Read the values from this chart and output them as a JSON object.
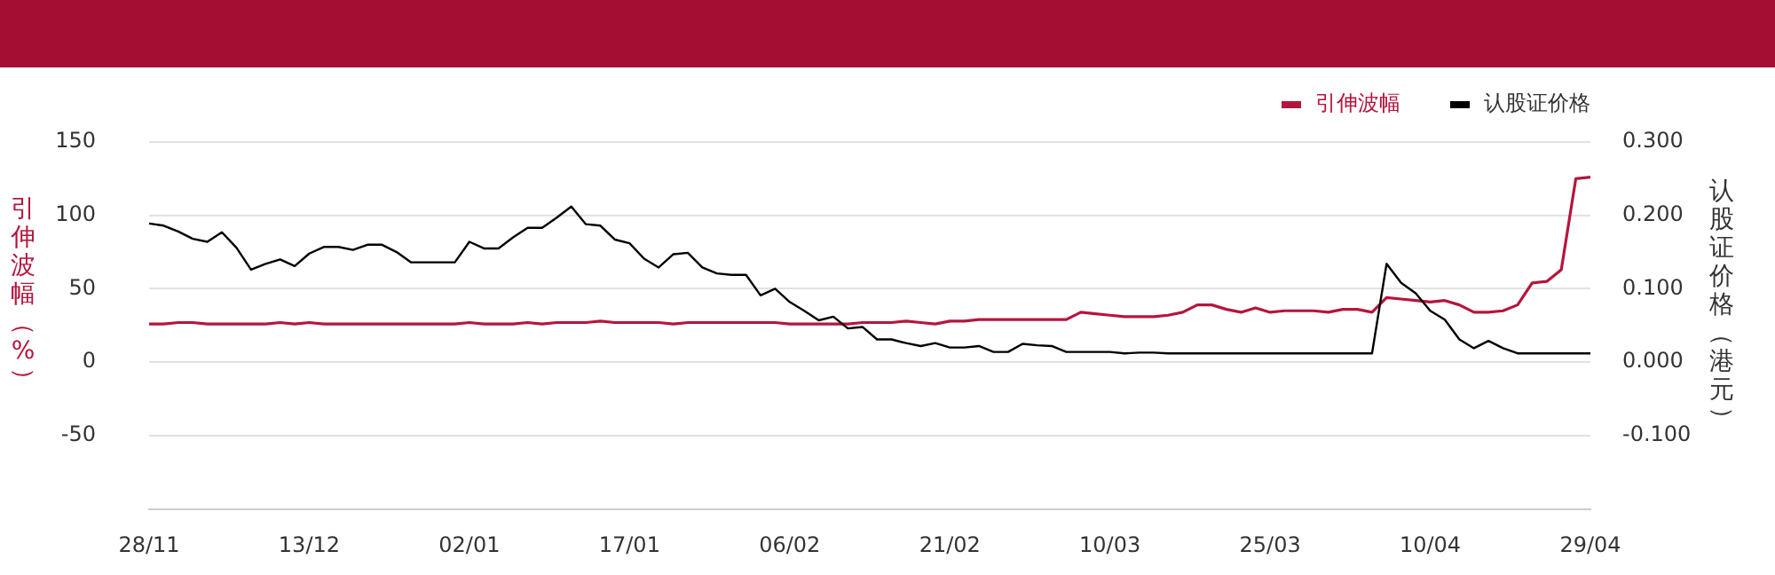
{
  "chart_data": {
    "type": "line",
    "categories": [
      "28/11",
      null,
      null,
      null,
      null,
      null,
      null,
      null,
      null,
      null,
      null,
      "13/12",
      null,
      null,
      null,
      null,
      null,
      null,
      null,
      null,
      null,
      null,
      "02/01",
      null,
      null,
      null,
      null,
      null,
      null,
      null,
      null,
      null,
      null,
      "17/01",
      null,
      null,
      null,
      null,
      null,
      null,
      null,
      null,
      null,
      null,
      "06/02",
      null,
      null,
      null,
      null,
      null,
      null,
      null,
      null,
      null,
      null,
      "21/02",
      null,
      null,
      null,
      null,
      null,
      null,
      null,
      null,
      null,
      null,
      "10/03",
      null,
      null,
      null,
      null,
      null,
      null,
      null,
      null,
      null,
      null,
      "25/03",
      null,
      null,
      null,
      null,
      null,
      null,
      null,
      null,
      null,
      null,
      "10/04",
      null,
      null,
      null,
      null,
      null,
      null,
      null,
      null,
      null,
      null,
      "29/04"
    ],
    "series": [
      {
        "name": "引伸波幅",
        "color": "#b5153c",
        "values": [
          26,
          26,
          27,
          27,
          26,
          26,
          26,
          26,
          26,
          27,
          26,
          27,
          26,
          26,
          26,
          26,
          26,
          26,
          26,
          26,
          26,
          26,
          27,
          26,
          26,
          26,
          27,
          26,
          27,
          27,
          27,
          28,
          27,
          27,
          27,
          27,
          26,
          27,
          27,
          27,
          27,
          27,
          27,
          27,
          26,
          26,
          26,
          26,
          26,
          27,
          27,
          27,
          28,
          27,
          26,
          28,
          28,
          29,
          29,
          29,
          29,
          29,
          29,
          29,
          34,
          33,
          32,
          31,
          31,
          31,
          32,
          34,
          39,
          39,
          36,
          34,
          37,
          34,
          35,
          35,
          35,
          34,
          36,
          36,
          34,
          44,
          43,
          42,
          41,
          42,
          39,
          34,
          34,
          35,
          39,
          54,
          55,
          63,
          125,
          126
        ]
      },
      {
        "name": "认股证价格",
        "color": "#000000",
        "axis": "y2",
        "values": [
          0.189,
          0.186,
          0.178,
          0.168,
          0.164,
          0.177,
          0.156,
          0.126,
          0.134,
          0.14,
          0.131,
          0.148,
          0.157,
          0.157,
          0.153,
          0.16,
          0.16,
          0.15,
          0.136,
          0.136,
          0.136,
          0.136,
          0.164,
          0.155,
          0.155,
          0.17,
          0.183,
          0.183,
          0.197,
          0.212,
          0.188,
          0.186,
          0.167,
          0.162,
          0.141,
          0.129,
          0.147,
          0.149,
          0.129,
          0.121,
          0.119,
          0.119,
          0.091,
          0.1,
          0.082,
          0.07,
          0.057,
          0.062,
          0.046,
          0.048,
          0.031,
          0.031,
          0.026,
          0.022,
          0.026,
          0.02,
          0.02,
          0.022,
          0.014,
          0.014,
          0.025,
          0.023,
          0.022,
          0.014,
          0.014,
          0.014,
          0.014,
          0.012,
          0.013,
          0.013,
          0.012,
          0.012,
          0.012,
          0.012,
          0.012,
          0.012,
          0.012,
          0.012,
          0.012,
          0.012,
          0.012,
          0.012,
          0.012,
          0.012,
          0.012,
          0.134,
          0.108,
          0.094,
          0.07,
          0.058,
          0.031,
          0.019,
          0.029,
          0.019,
          0.012,
          0.012,
          0.012,
          0.012,
          0.012,
          0.012
        ]
      }
    ],
    "ylabel": "引伸波幅（%）",
    "y2label": "认股证价格（港元）",
    "ylim": [
      -100,
      150
    ],
    "yticks": [
      -50,
      0,
      50,
      100,
      150
    ],
    "y2lim": [
      -0.2,
      0.3
    ],
    "y2ticks": [
      {
        "value": -0.1,
        "label": "-0.100"
      },
      {
        "value": 0,
        "label": "0.000"
      },
      {
        "value": 0.1,
        "label": "0.100"
      },
      {
        "value": 0.2,
        "label": "0.200"
      },
      {
        "value": 0.3,
        "label": "0.300"
      }
    ],
    "grid": "y",
    "legend": "top right",
    "marker": "none",
    "line_style": "solid"
  }
}
